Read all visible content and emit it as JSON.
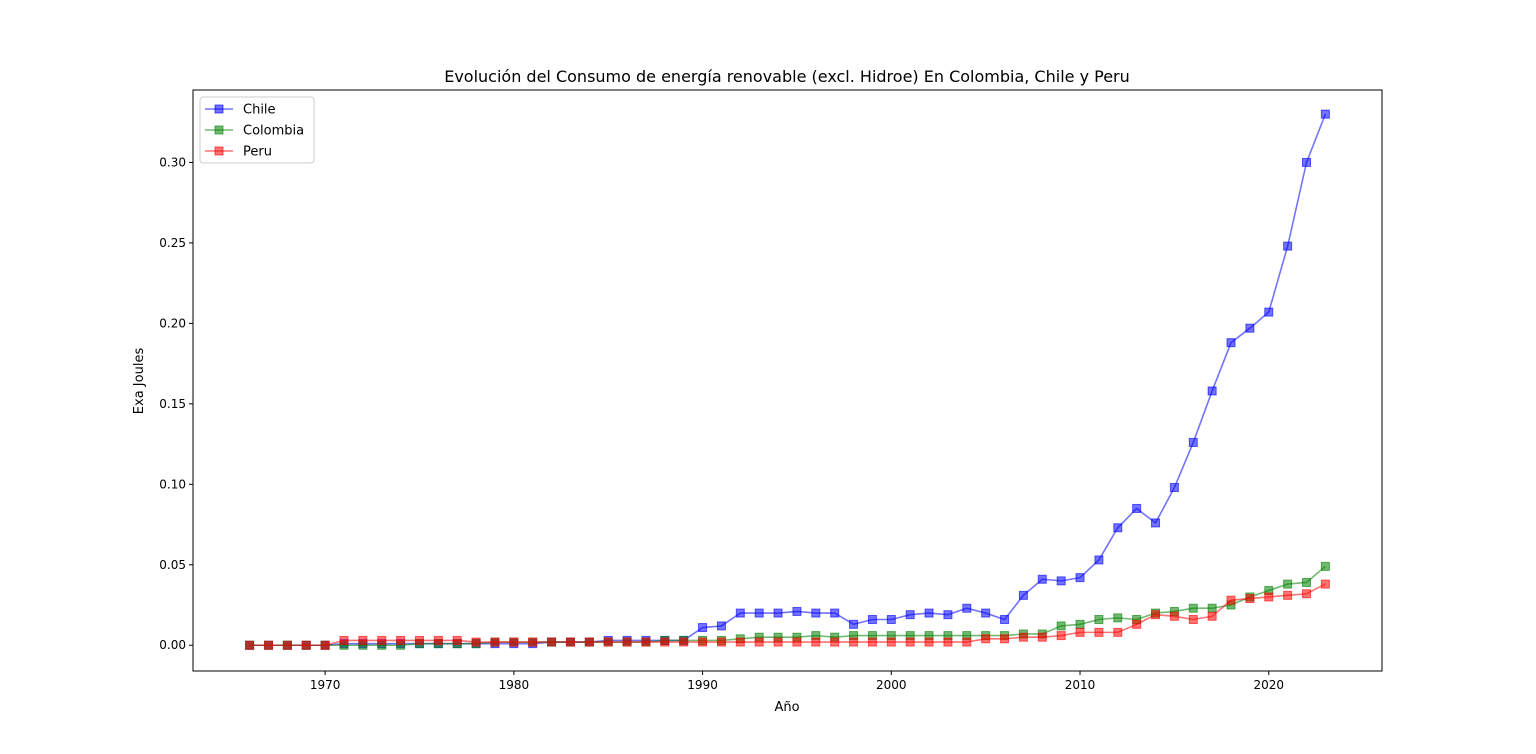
{
  "chart_data": {
    "type": "line",
    "title": "Evolución del Consumo de energía renovable (excl. Hidroe) En Colombia, Chile y Peru",
    "xlabel": "Año",
    "ylabel": "Exa Joules",
    "xlim": [
      1963,
      2026
    ],
    "ylim": [
      -0.016,
      0.345
    ],
    "xticks": [
      1970,
      1980,
      1990,
      2000,
      2010,
      2020
    ],
    "yticks": [
      0.0,
      0.05,
      0.1,
      0.15,
      0.2,
      0.25,
      0.3
    ],
    "ytick_labels": [
      "0.00",
      "0.05",
      "0.10",
      "0.15",
      "0.20",
      "0.25",
      "0.30"
    ],
    "grid": false,
    "legend_position": "top-left",
    "x": [
      1966,
      1967,
      1968,
      1969,
      1970,
      1971,
      1972,
      1973,
      1974,
      1975,
      1976,
      1977,
      1978,
      1979,
      1980,
      1981,
      1982,
      1983,
      1984,
      1985,
      1986,
      1987,
      1988,
      1989,
      1990,
      1991,
      1992,
      1993,
      1994,
      1995,
      1996,
      1997,
      1998,
      1999,
      2000,
      2001,
      2002,
      2003,
      2004,
      2005,
      2006,
      2007,
      2008,
      2009,
      2010,
      2011,
      2012,
      2013,
      2014,
      2015,
      2016,
      2017,
      2018,
      2019,
      2020,
      2021,
      2022,
      2023
    ],
    "series": [
      {
        "name": "Chile",
        "color": "#0000ff",
        "marker": "square",
        "values": [
          0,
          0,
          0,
          0,
          0,
          0.001,
          0.001,
          0.001,
          0.001,
          0.001,
          0.001,
          0.001,
          0.001,
          0.001,
          0.001,
          0.001,
          0.002,
          0.002,
          0.002,
          0.003,
          0.003,
          0.003,
          0.003,
          0.003,
          0.011,
          0.012,
          0.02,
          0.02,
          0.02,
          0.021,
          0.02,
          0.02,
          0.013,
          0.016,
          0.016,
          0.019,
          0.02,
          0.019,
          0.023,
          0.02,
          0.016,
          0.031,
          0.041,
          0.04,
          0.042,
          0.053,
          0.073,
          0.085,
          0.076,
          0.098,
          0.126,
          0.158,
          0.188,
          0.197,
          0.207,
          0.248,
          0.3,
          0.33
        ]
      },
      {
        "name": "Colombia",
        "color": "#008000",
        "marker": "square",
        "values": [
          0,
          0,
          0,
          0,
          0,
          0,
          0,
          0,
          0,
          0.001,
          0.001,
          0.001,
          0.001,
          0.002,
          0.002,
          0.002,
          0.002,
          0.002,
          0.002,
          0.002,
          0.002,
          0.002,
          0.003,
          0.003,
          0.003,
          0.003,
          0.004,
          0.005,
          0.005,
          0.005,
          0.006,
          0.005,
          0.006,
          0.006,
          0.006,
          0.006,
          0.006,
          0.006,
          0.006,
          0.006,
          0.006,
          0.007,
          0.007,
          0.012,
          0.013,
          0.016,
          0.017,
          0.016,
          0.02,
          0.021,
          0.023,
          0.023,
          0.025,
          0.03,
          0.034,
          0.038,
          0.039,
          0.049
        ]
      },
      {
        "name": "Peru",
        "color": "#ff0000",
        "marker": "square",
        "values": [
          0,
          0,
          0,
          0,
          0,
          0.003,
          0.003,
          0.003,
          0.003,
          0.003,
          0.003,
          0.003,
          0.002,
          0.002,
          0.002,
          0.002,
          0.002,
          0.002,
          0.002,
          0.002,
          0.002,
          0.002,
          0.002,
          0.002,
          0.002,
          0.002,
          0.002,
          0.002,
          0.002,
          0.002,
          0.002,
          0.002,
          0.002,
          0.002,
          0.002,
          0.002,
          0.002,
          0.002,
          0.002,
          0.004,
          0.004,
          0.005,
          0.005,
          0.006,
          0.008,
          0.008,
          0.008,
          0.013,
          0.019,
          0.018,
          0.016,
          0.018,
          0.028,
          0.029,
          0.03,
          0.031,
          0.032,
          0.038
        ]
      }
    ]
  }
}
